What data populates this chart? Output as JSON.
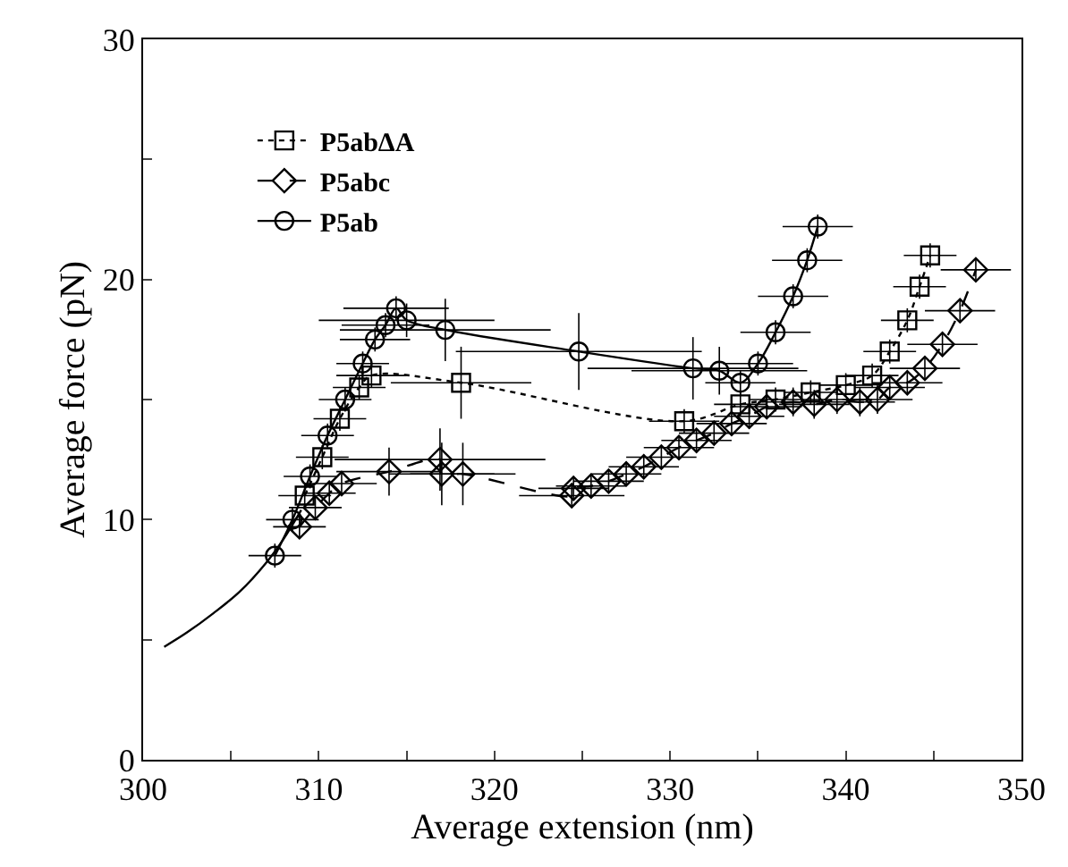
{
  "chart_data": {
    "type": "line",
    "xlabel": "Average extension (nm)",
    "ylabel": "Average force (pN)",
    "xlim": [
      300,
      350
    ],
    "ylim": [
      0,
      30
    ],
    "xticks": [
      300,
      {
        "value": 305,
        "label": null
      },
      310,
      {
        "value": 315,
        "label": null
      },
      320,
      {
        "value": 325,
        "label": null
      },
      330,
      {
        "value": 335,
        "label": null
      },
      340,
      {
        "value": 345,
        "label": null
      },
      350
    ],
    "yticks": [
      0,
      {
        "value": 5,
        "label": null
      },
      10,
      {
        "value": 15,
        "label": null
      },
      20,
      {
        "value": 25,
        "label": null
      },
      30
    ],
    "legend": "top left",
    "series": [
      {
        "name": "P5abΔA",
        "color": "#000000",
        "line_style": "dotted",
        "marker": "square",
        "x": [
          309.2,
          310.2,
          311.2,
          312.3,
          313.0,
          318.1,
          330.8,
          334.0,
          336.0,
          338.0,
          340.0,
          341.5,
          342.5,
          343.5,
          344.2,
          344.8
        ],
        "values": [
          11.0,
          12.6,
          14.2,
          15.5,
          16.0,
          15.7,
          14.1,
          14.8,
          15.0,
          15.3,
          15.6,
          16.0,
          17.0,
          18.3,
          19.7,
          21.0
        ],
        "errors": [
          0.5,
          0.5,
          0.5,
          0.5,
          0.5,
          1.5,
          0.5,
          0.5,
          0.5,
          0.5,
          0.5,
          0.5,
          0.5,
          0.5,
          0.5,
          0.5
        ],
        "xerrors": [
          1.5,
          1.5,
          1.5,
          1.5,
          2,
          4,
          2,
          1.5,
          1.5,
          1.5,
          1.5,
          1.5,
          1.5,
          1.5,
          1.5,
          1.5
        ]
      },
      {
        "name": "P5abc",
        "color": "#000000",
        "line_style": "dashed",
        "marker": "diamond",
        "x": [
          308.9,
          309.8,
          310.6,
          311.3,
          314.0,
          316.9,
          317.0,
          318.2,
          324.4,
          324.5,
          325.5,
          326.5,
          327.5,
          328.5,
          329.5,
          330.5,
          331.5,
          332.5,
          333.5,
          334.5,
          335.5,
          337.0,
          338.2,
          339.5,
          340.8,
          341.8,
          342.5,
          343.5,
          344.5,
          345.5,
          346.5,
          347.4
        ],
        "values": [
          9.7,
          10.5,
          11.1,
          11.5,
          12.0,
          12.5,
          11.9,
          11.9,
          11.0,
          11.3,
          11.4,
          11.6,
          11.9,
          12.2,
          12.6,
          13.0,
          13.3,
          13.6,
          14.0,
          14.3,
          14.7,
          14.9,
          14.8,
          15.0,
          14.9,
          15.0,
          15.5,
          15.7,
          16.3,
          17.3,
          18.7,
          20.4
        ],
        "errors": [
          0.5,
          0.5,
          0.5,
          0.5,
          1.0,
          1.3,
          1.3,
          1.3,
          0.5,
          0.5,
          0.5,
          0.5,
          0.5,
          0.5,
          0.5,
          0.5,
          0.5,
          0.5,
          0.5,
          0.5,
          0.5,
          0.6,
          0.6,
          0.6,
          0.6,
          0.6,
          0.5,
          0.5,
          0.5,
          0.5,
          0.5,
          0.5
        ],
        "xerrors": [
          1.5,
          1.5,
          1.5,
          2,
          3,
          6,
          3,
          3,
          3,
          2,
          2,
          2,
          2,
          2,
          2,
          2,
          2,
          2,
          2,
          2,
          2,
          2,
          2,
          2,
          2,
          2,
          2,
          2,
          2,
          2,
          2,
          2
        ]
      },
      {
        "name": "P5ab",
        "color": "#000000",
        "line_style": "solid",
        "marker": "circle",
        "x": [
          307.5,
          308.5,
          309.5,
          310.5,
          311.5,
          312.5,
          313.2,
          313.8,
          314.4,
          315.0,
          317.2,
          324.8,
          331.3,
          332.8,
          334.0,
          335.0,
          336.0,
          337.0,
          337.8,
          338.4
        ],
        "values": [
          8.5,
          10.0,
          11.8,
          13.5,
          15.0,
          16.5,
          17.5,
          18.1,
          18.8,
          18.3,
          17.9,
          17.0,
          16.3,
          16.2,
          15.7,
          16.5,
          17.8,
          19.3,
          20.8,
          22.2
        ],
        "errors": [
          0.5,
          0.5,
          0.5,
          0.5,
          0.5,
          0.5,
          0.5,
          0.5,
          0.5,
          0.7,
          1.3,
          1.6,
          1.3,
          1.0,
          0.5,
          0.5,
          0.5,
          0.5,
          0.5,
          0.5
        ],
        "xerrors": [
          1.5,
          1.5,
          1.5,
          1.5,
          1.5,
          1.5,
          2,
          2.5,
          3,
          5,
          6,
          7,
          6,
          5,
          2,
          2,
          2,
          2,
          2,
          2
        ]
      },
      {
        "color": "#000000",
        "line_style": "solid",
        "marker": "none",
        "x": [
          301.2,
          302.5,
          304.0,
          305.5,
          307.0,
          308.0,
          309.0
        ],
        "values": [
          4.7,
          5.3,
          6.1,
          7.0,
          8.2,
          9.2,
          10.4
        ]
      }
    ]
  }
}
